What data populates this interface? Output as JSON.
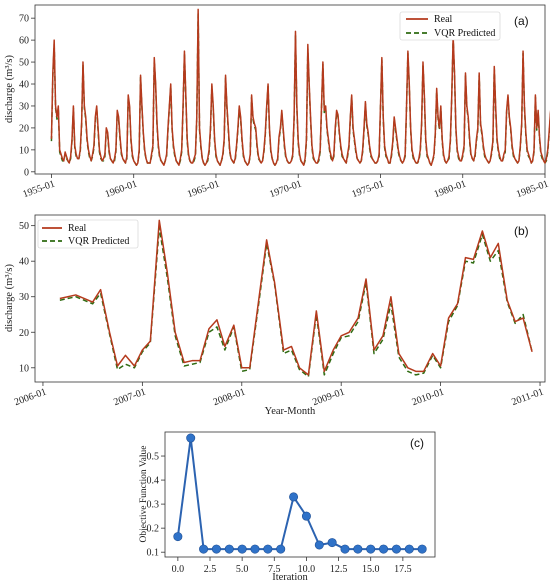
{
  "colors": {
    "real": "#b53a1d",
    "predicted": "#2f6b12",
    "objective": "#2c63b1",
    "objective_marker": "#2f72c8"
  },
  "chart_data": [
    {
      "type": "line",
      "panel_label": "(a)",
      "xlabel": "",
      "ylabel": "discharge (m³/s)",
      "ylim": [
        -1,
        76
      ],
      "yticks": [
        0,
        10,
        20,
        30,
        40,
        50,
        60,
        70
      ],
      "xlim": [
        1954.0,
        1985.0
      ],
      "xticks": [
        1955,
        1960,
        1965,
        1970,
        1975,
        1980,
        1985
      ],
      "xtick_labels": [
        "1955-01",
        "1960-01",
        "1965-01",
        "1970-01",
        "1975-01",
        "1980-01",
        "1985-01"
      ],
      "legend_position": "top-right",
      "legend": [
        "Real",
        "VQR Predicted"
      ],
      "x_start": 1955.0,
      "x_step": 0.0833333,
      "series": [
        {
          "name": "Real",
          "values": [
            15,
            45,
            60,
            30,
            25,
            30,
            10,
            8,
            6,
            5,
            9,
            7,
            5,
            4,
            7,
            15,
            30,
            12,
            8,
            6,
            6,
            10,
            22,
            50,
            30,
            25,
            15,
            10,
            7,
            5,
            8,
            12,
            25,
            30,
            20,
            10,
            7,
            5,
            6,
            8,
            20,
            18,
            10,
            6,
            5,
            4,
            6,
            10,
            28,
            25,
            16,
            9,
            6,
            5,
            4,
            7,
            35,
            30,
            15,
            8,
            5,
            4,
            3,
            4,
            10,
            44,
            30,
            18,
            10,
            6,
            4,
            4,
            4,
            8,
            12,
            52,
            40,
            22,
            12,
            7,
            5,
            4,
            3,
            5,
            8,
            20,
            30,
            40,
            20,
            12,
            8,
            5,
            4,
            3,
            6,
            10,
            30,
            55,
            35,
            15,
            8,
            5,
            4,
            4,
            6,
            8,
            25,
            74,
            20,
            12,
            6,
            4,
            3,
            4,
            6,
            10,
            20,
            40,
            30,
            15,
            8,
            5,
            4,
            3,
            5,
            8,
            15,
            44,
            30,
            20,
            10,
            6,
            5,
            4,
            6,
            12,
            20,
            30,
            25,
            15,
            8,
            5,
            4,
            3,
            4,
            8,
            35,
            25,
            22,
            20,
            12,
            7,
            5,
            4,
            5,
            10,
            18,
            30,
            40,
            20,
            10,
            6,
            4,
            3,
            4,
            6,
            16,
            20,
            28,
            20,
            12,
            7,
            5,
            4,
            4,
            5,
            8,
            25,
            64,
            30,
            14,
            8,
            5,
            4,
            3,
            6,
            15,
            58,
            40,
            25,
            12,
            7,
            5,
            4,
            4,
            6,
            10,
            30,
            50,
            28,
            30,
            20,
            15,
            10,
            7,
            5,
            8,
            20,
            28,
            26,
            18,
            12,
            8,
            6,
            5,
            4,
            8,
            12,
            25,
            35,
            20,
            15,
            10,
            6,
            5,
            4,
            5,
            10,
            20,
            32,
            22,
            18,
            12,
            8,
            6,
            5,
            4,
            4,
            5,
            8,
            30,
            52,
            25,
            12,
            8,
            6,
            4,
            4,
            8,
            14,
            25,
            20,
            15,
            10,
            7,
            5,
            4,
            5,
            8,
            30,
            55,
            40,
            20,
            10,
            7,
            5,
            4,
            4,
            6,
            10,
            22,
            50,
            35,
            15,
            8,
            6,
            4,
            3,
            5,
            8,
            18,
            38,
            25,
            20,
            30,
            15,
            8,
            5,
            4,
            5,
            7,
            15,
            35,
            62,
            45,
            20,
            10,
            7,
            5,
            5,
            8,
            12,
            45,
            30,
            25,
            15,
            8,
            6,
            5,
            8,
            15,
            20,
            45,
            22,
            18,
            12,
            8,
            6,
            5,
            4,
            5,
            9,
            14,
            48,
            30,
            15,
            10,
            7,
            5,
            5,
            8,
            10,
            28,
            35,
            25,
            20,
            12,
            8,
            6,
            5,
            4,
            5,
            12,
            22,
            55,
            30,
            18,
            10,
            8,
            6,
            4,
            5,
            10,
            35,
            20,
            28,
            16,
            9,
            7,
            5,
            4,
            6,
            10,
            18,
            27,
            33,
            20,
            15,
            9,
            7,
            5,
            4,
            6,
            12,
            40,
            18,
            28,
            55,
            20,
            10,
            8
          ]
        },
        {
          "name": "VQR Predicted",
          "values": [
            14,
            43,
            58,
            29,
            24,
            29,
            9,
            7,
            5,
            5,
            8,
            6,
            5,
            4,
            6,
            14,
            29,
            11,
            7,
            6,
            6,
            9,
            21,
            49,
            29,
            24,
            14,
            9,
            6,
            5,
            7,
            11,
            24,
            29,
            19,
            9,
            6,
            5,
            5,
            7,
            19,
            17,
            9,
            6,
            5,
            4,
            5,
            9,
            27,
            24,
            15,
            8,
            6,
            5,
            4,
            6,
            34,
            29,
            14,
            7,
            5,
            4,
            3,
            4,
            9,
            43,
            29,
            17,
            9,
            6,
            4,
            4,
            4,
            7,
            11,
            51,
            39,
            21,
            11,
            6,
            5,
            4,
            3,
            5,
            7,
            19,
            29,
            39,
            19,
            11,
            7,
            5,
            4,
            3,
            5,
            9,
            29,
            54,
            34,
            14,
            7,
            5,
            4,
            4,
            5,
            7,
            24,
            72,
            19,
            11,
            6,
            4,
            3,
            4,
            5,
            9,
            19,
            39,
            29,
            14,
            7,
            5,
            4,
            3,
            5,
            7,
            14,
            43,
            29,
            19,
            9,
            6,
            5,
            4,
            5,
            11,
            19,
            29,
            24,
            14,
            7,
            5,
            4,
            3,
            4,
            7,
            34,
            24,
            21,
            19,
            11,
            6,
            5,
            4,
            5,
            9,
            17,
            29,
            39,
            19,
            9,
            6,
            4,
            3,
            4,
            5,
            15,
            19,
            27,
            19,
            11,
            6,
            5,
            4,
            4,
            5,
            7,
            24,
            62,
            29,
            13,
            7,
            5,
            4,
            3,
            5,
            14,
            56,
            39,
            24,
            11,
            6,
            5,
            4,
            4,
            5,
            9,
            29,
            49,
            27,
            29,
            19,
            14,
            9,
            6,
            5,
            7,
            19,
            27,
            25,
            17,
            11,
            7,
            6,
            5,
            4,
            7,
            11,
            24,
            34,
            19,
            14,
            9,
            6,
            5,
            4,
            5,
            9,
            19,
            31,
            21,
            17,
            11,
            7,
            6,
            5,
            4,
            4,
            5,
            7,
            29,
            51,
            24,
            11,
            7,
            6,
            4,
            4,
            7,
            13,
            24,
            19,
            14,
            9,
            6,
            5,
            4,
            5,
            7,
            29,
            54,
            39,
            19,
            9,
            6,
            5,
            4,
            4,
            5,
            9,
            21,
            49,
            34,
            14,
            7,
            6,
            4,
            3,
            5,
            7,
            17,
            37,
            24,
            19,
            29,
            14,
            7,
            5,
            4,
            5,
            6,
            14,
            34,
            61,
            44,
            19,
            9,
            6,
            5,
            5,
            7,
            11,
            44,
            29,
            24,
            14,
            7,
            6,
            5,
            7,
            14,
            19,
            44,
            21,
            17,
            11,
            7,
            6,
            5,
            4,
            5,
            8,
            13,
            47,
            29,
            14,
            9,
            6,
            5,
            5,
            7,
            9,
            27,
            34,
            24,
            19,
            11,
            7,
            6,
            5,
            4,
            5,
            11,
            21,
            54,
            29,
            17,
            9,
            7,
            6,
            4,
            5,
            9,
            34,
            19,
            27,
            15,
            8,
            6,
            5,
            4,
            5,
            9,
            17,
            26,
            32,
            19,
            14,
            8,
            6,
            5,
            4,
            5,
            11,
            39,
            17,
            27,
            54,
            19,
            9,
            7
          ]
        }
      ]
    },
    {
      "type": "line",
      "panel_label": "(b)",
      "xlabel": "Year-Month",
      "ylabel": "discharge (m³/s)",
      "ylim": [
        6,
        53
      ],
      "yticks": [
        10,
        20,
        30,
        40,
        50
      ],
      "xlim": [
        2005.92,
        2011.05
      ],
      "xticks": [
        2006,
        2007,
        2008,
        2009,
        2010,
        2011
      ],
      "xtick_labels": [
        "2006-01",
        "2007-01",
        "2008-01",
        "2009-01",
        "2010-01",
        "2011-01"
      ],
      "legend_position": "top-left",
      "legend": [
        "Real",
        "VQR Predicted"
      ],
      "x": [
        2006.17,
        2006.33,
        2006.5,
        2006.58,
        2006.67,
        2006.75,
        2006.83,
        2006.92,
        2007.0,
        2007.08,
        2007.17,
        2007.25,
        2007.33,
        2007.42,
        2007.5,
        2007.58,
        2007.67,
        2007.75,
        2007.83,
        2007.92,
        2008.0,
        2008.08,
        2008.17,
        2008.25,
        2008.33,
        2008.42,
        2008.5,
        2008.58,
        2008.67,
        2008.75,
        2008.83,
        2008.92,
        2009.0,
        2009.08,
        2009.17,
        2009.25,
        2009.33,
        2009.42,
        2009.5,
        2009.58,
        2009.67,
        2009.75,
        2009.83,
        2009.92,
        2010.0,
        2010.08,
        2010.17,
        2010.25,
        2010.33,
        2010.42,
        2010.5,
        2010.58,
        2010.67,
        2010.75,
        2010.83,
        2010.92
      ],
      "series": [
        {
          "name": "Real",
          "values": [
            29.5,
            30.5,
            28.5,
            32,
            20,
            10.5,
            13.5,
            10.5,
            15,
            17.5,
            51.5,
            37,
            20,
            11.5,
            12,
            12,
            21,
            23.5,
            16,
            22,
            10,
            10,
            29,
            46,
            34,
            15,
            16,
            10,
            8,
            26,
            9,
            15,
            19,
            20,
            24,
            35,
            15,
            19,
            30,
            14,
            10,
            9,
            9,
            14,
            10.5,
            24,
            28,
            41,
            40.5,
            48.5,
            41,
            45,
            29,
            23,
            24,
            14.5
          ]
        },
        {
          "name": "VQR Predicted",
          "values": [
            29,
            30,
            28,
            31,
            19.5,
            9.5,
            11,
            10,
            14.5,
            17,
            49.5,
            35.5,
            19,
            10.5,
            11,
            11.5,
            20,
            21.5,
            15,
            21.5,
            9,
            9.5,
            28,
            45,
            33.5,
            14,
            15,
            9.5,
            7.5,
            25,
            8,
            14,
            18.5,
            19,
            23,
            34,
            14,
            18,
            28,
            13,
            9,
            8,
            8.5,
            13.5,
            10,
            23,
            27.5,
            40,
            39.5,
            47.5,
            40,
            43,
            28.5,
            22.5,
            25,
            14.5
          ]
        }
      ]
    },
    {
      "type": "line",
      "panel_label": "(c)",
      "xlabel": "Iteration",
      "ylabel": "Objective Function Value",
      "ylim": [
        0.08,
        0.6
      ],
      "yticks": [
        0.1,
        0.2,
        0.3,
        0.4,
        0.5
      ],
      "xlim": [
        -1,
        20
      ],
      "xticks": [
        0.0,
        2.5,
        5.0,
        7.5,
        10.0,
        12.5,
        15.0,
        17.5
      ],
      "xtick_labels": [
        "0.0",
        "2.5",
        "5.0",
        "7.5",
        "10.0",
        "12.5",
        "15.0",
        "17.5"
      ],
      "x": [
        0,
        1,
        2,
        3,
        4,
        5,
        6,
        7,
        8,
        9,
        10,
        11,
        12,
        13,
        14,
        15,
        16,
        17,
        18,
        19
      ],
      "series": [
        {
          "name": "",
          "values": [
            0.165,
            0.575,
            0.113,
            0.113,
            0.113,
            0.113,
            0.113,
            0.113,
            0.113,
            0.33,
            0.25,
            0.13,
            0.14,
            0.113,
            0.113,
            0.113,
            0.113,
            0.113,
            0.113,
            0.113
          ]
        }
      ]
    }
  ]
}
